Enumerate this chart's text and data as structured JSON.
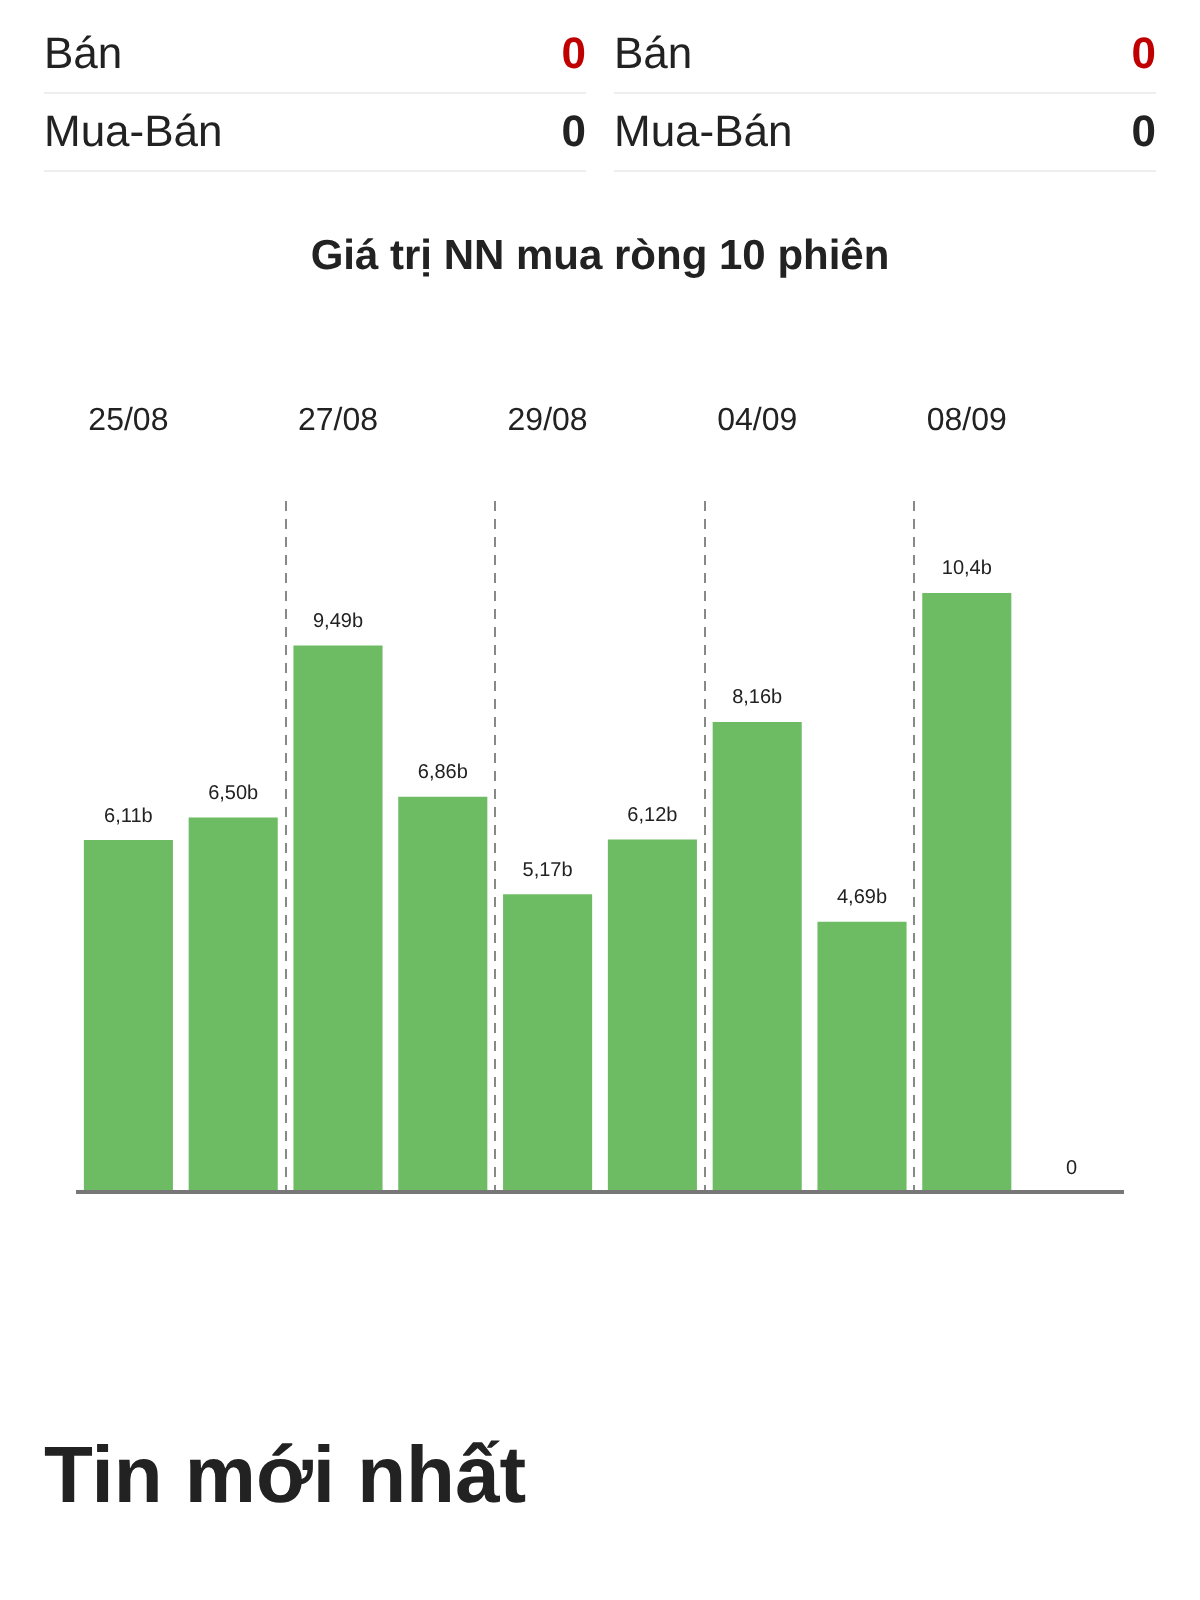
{
  "chart_data": {
    "type": "bar",
    "title": "Giá trị NN mua ròng 10 phiên",
    "categories": [
      "25/08",
      null,
      "27/08",
      null,
      "29/08",
      null,
      "04/09",
      null,
      "08/09",
      null
    ],
    "values": [
      6.11,
      6.5,
      9.49,
      6.86,
      5.17,
      6.12,
      8.16,
      4.69,
      10.4,
      0
    ],
    "value_labels": [
      "6,11b",
      "6,50b",
      "9,49b",
      "6,86b",
      "5,17b",
      "6,12b",
      "8,16b",
      "4,69b",
      "10,4b",
      "0"
    ],
    "color": "#6dbb63",
    "grid": "x",
    "annotations": [
      "Bán",
      "0",
      "Bán",
      "0",
      "Mua-Bán",
      "0",
      "Mua-Bán",
      "0",
      "Tin mới nhất"
    ]
  }
}
